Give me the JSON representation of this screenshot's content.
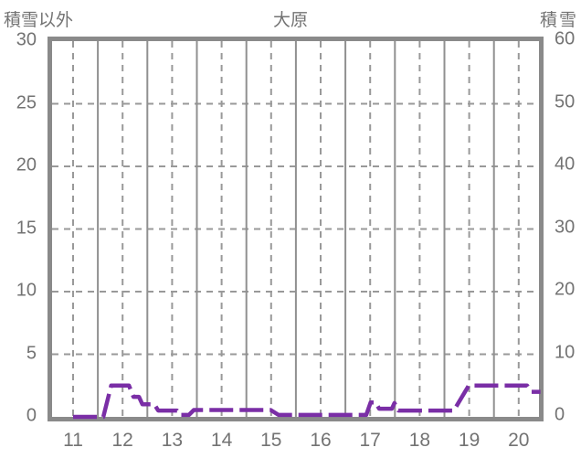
{
  "header": {
    "left_axis_title": "積雪以外",
    "title": "大原",
    "right_axis_title": "積雪"
  },
  "colors": {
    "background": "#ffffff",
    "frame": "#8a8a8a",
    "grid_dashed": "#999999",
    "grid_solid": "#909090",
    "text": "#737373",
    "line": "#7a2ea6"
  },
  "chart_data": {
    "type": "line",
    "title": "大原",
    "x_axis": {
      "ticks": [
        11,
        12,
        13,
        14,
        15,
        16,
        17,
        18,
        19,
        20
      ],
      "range": [
        10.5,
        20.42
      ],
      "half_step_solid_gridlines": true,
      "gridline_style_at_ticks": "dashed"
    },
    "y_axis_left": {
      "label": "積雪以外",
      "ticks": [
        0,
        5,
        10,
        15,
        20,
        25,
        30
      ],
      "range": [
        0,
        30
      ],
      "gridlines": "dashed"
    },
    "y_axis_right": {
      "label": "積雪",
      "ticks": [
        0,
        10,
        20,
        30,
        40,
        50,
        60
      ],
      "range": [
        0,
        60
      ]
    },
    "series": [
      {
        "axis": "left",
        "style": "dashed",
        "color": "#7a2ea6",
        "points": [
          [
            11.0,
            0.0
          ],
          [
            11.61,
            0.0
          ],
          [
            11.77,
            2.5
          ],
          [
            12.13,
            2.5
          ],
          [
            12.22,
            1.6
          ],
          [
            12.33,
            1.6
          ],
          [
            12.4,
            1.0
          ],
          [
            12.64,
            1.0
          ],
          [
            12.72,
            0.5
          ],
          [
            13.1,
            0.5
          ],
          [
            13.16,
            0.15
          ],
          [
            13.34,
            0.15
          ],
          [
            13.44,
            0.55
          ],
          [
            14.99,
            0.55
          ],
          [
            15.15,
            0.15
          ],
          [
            16.92,
            0.15
          ],
          [
            17.01,
            1.15
          ],
          [
            17.11,
            1.15
          ],
          [
            17.18,
            0.65
          ],
          [
            17.44,
            0.65
          ],
          [
            17.49,
            1.1
          ],
          [
            17.57,
            0.5
          ],
          [
            18.69,
            0.5
          ],
          [
            18.99,
            2.5
          ],
          [
            20.17,
            2.5
          ],
          [
            20.26,
            2.0
          ],
          [
            20.44,
            2.0
          ]
        ]
      }
    ]
  }
}
